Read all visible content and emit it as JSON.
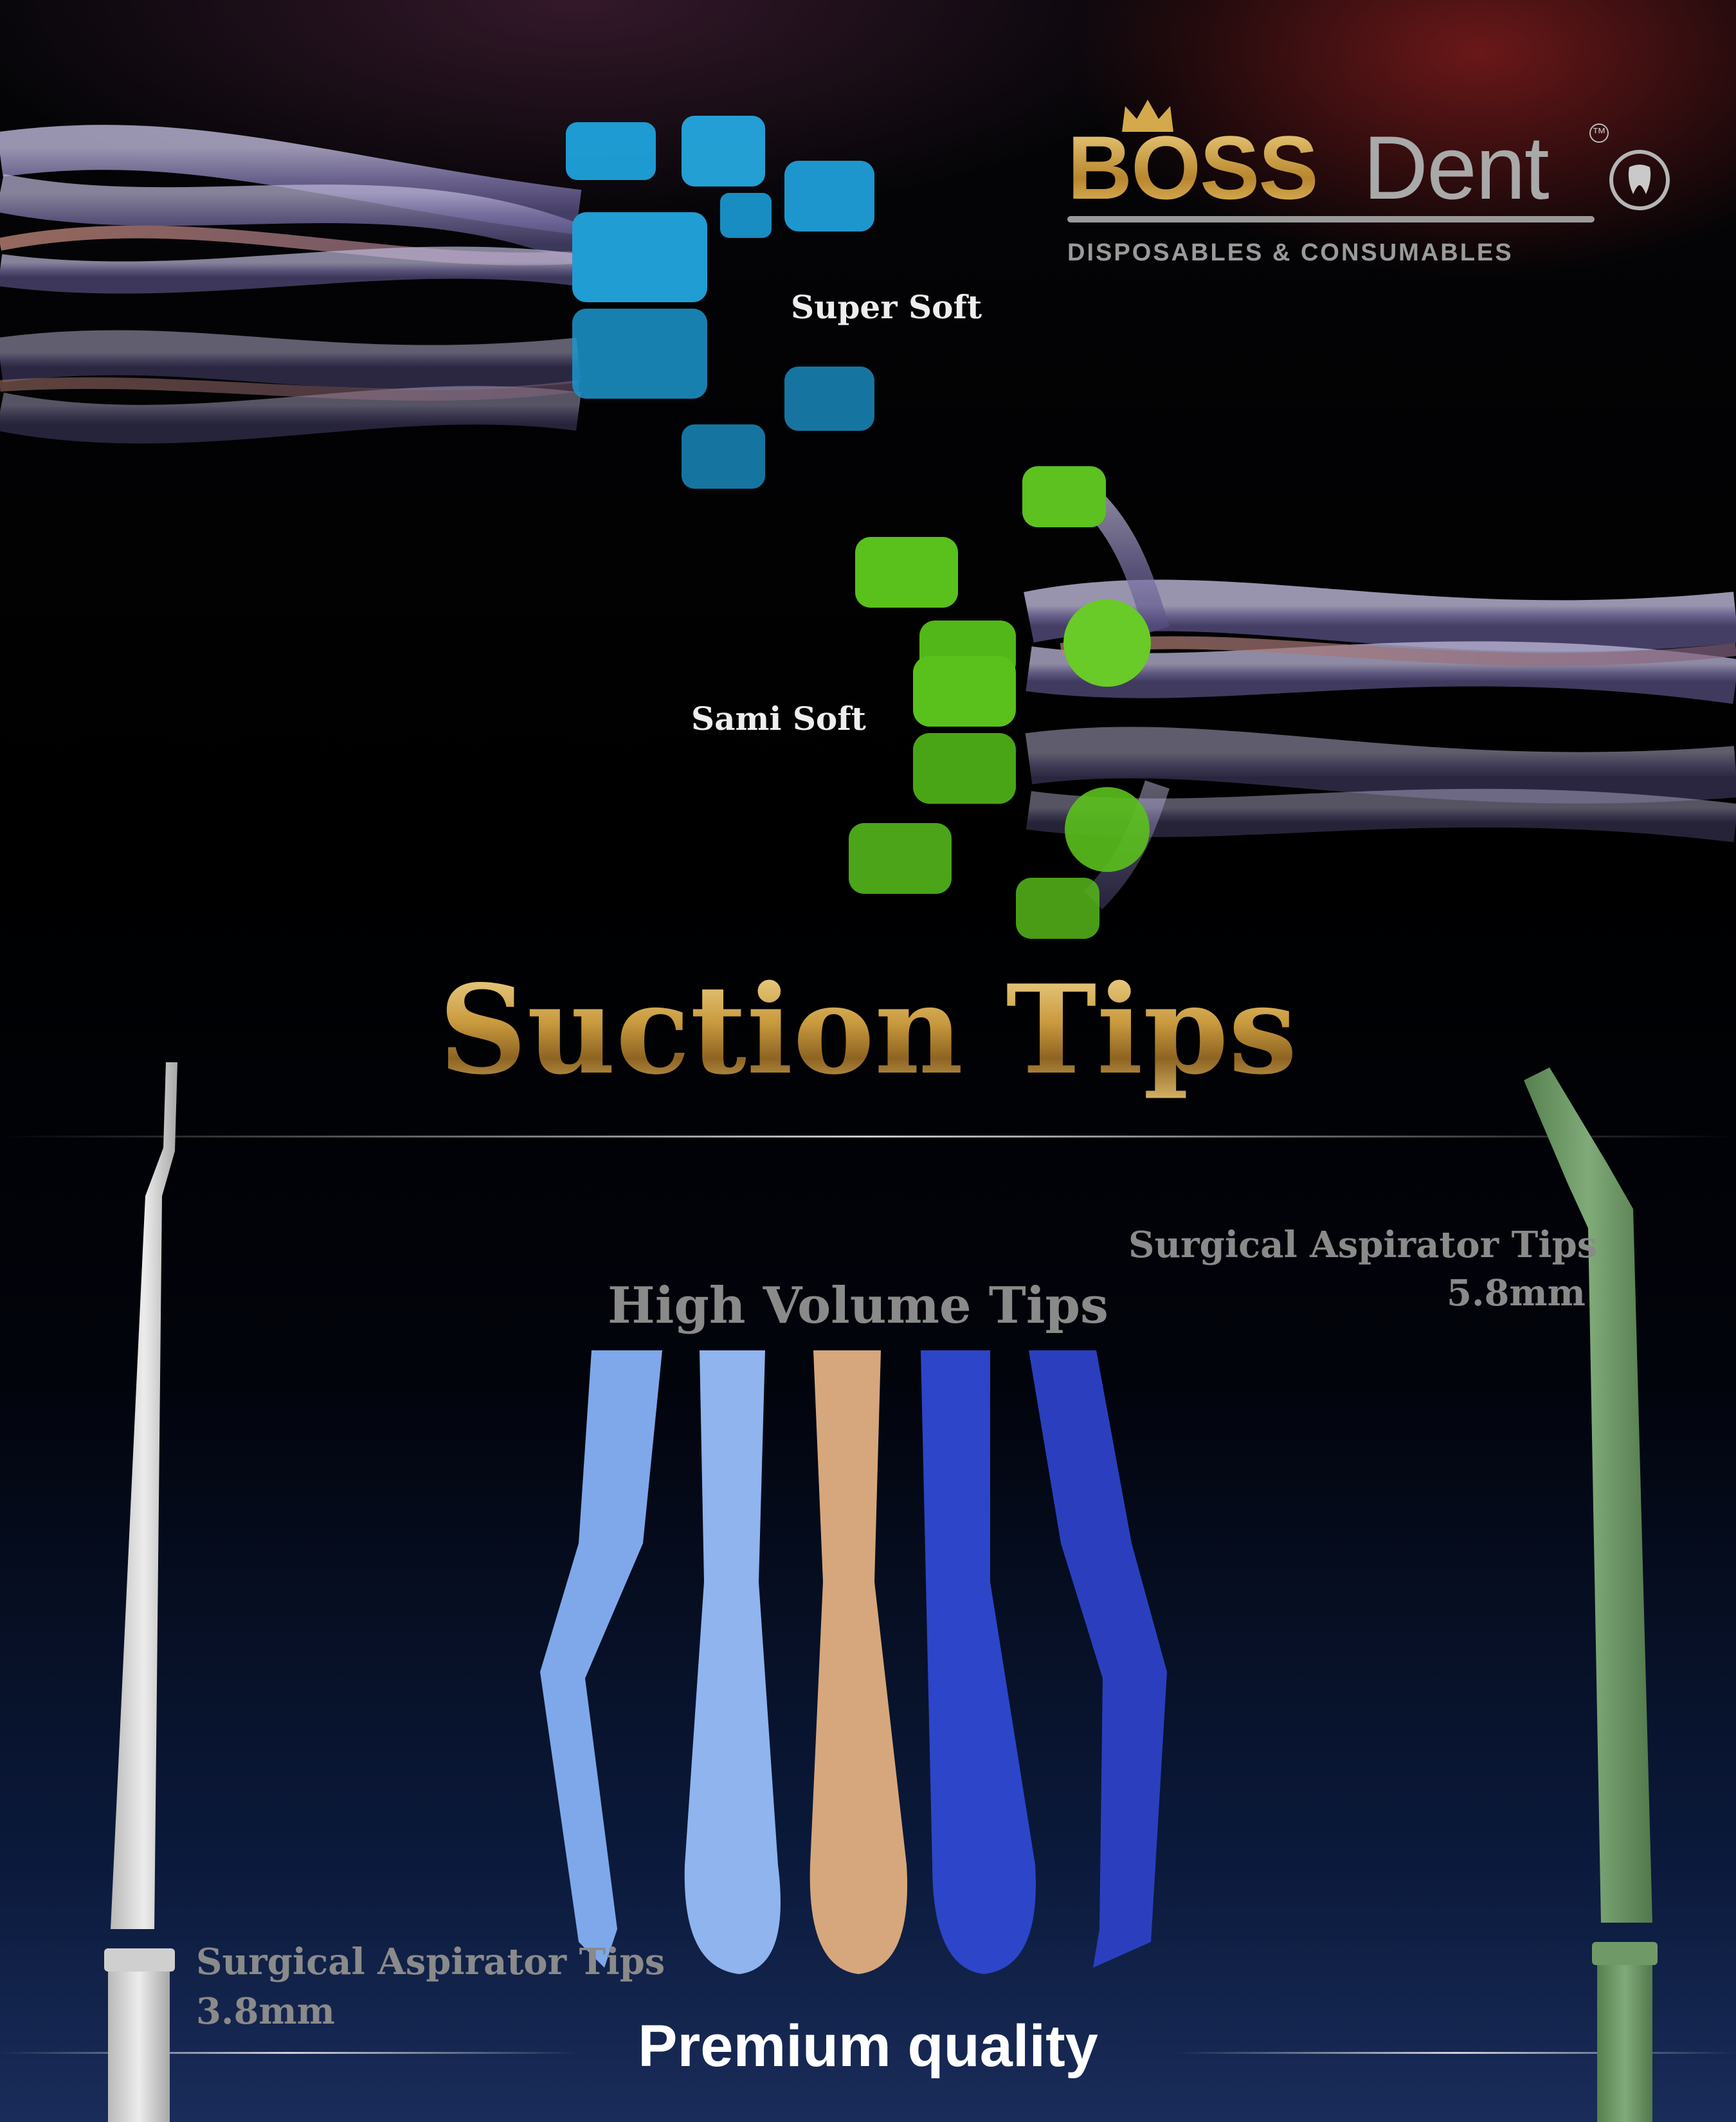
{
  "brand": {
    "name_part1": "BOSS",
    "name_part2": "Dent",
    "trademark": "TM",
    "tagline": "DISPOSABLES & CONSUMABLES",
    "tooth_icon": "tooth-icon",
    "crown_icon": "crown-icon",
    "colors": {
      "gold": "#c99a3e",
      "silver": "#a9a9a9"
    }
  },
  "products": {
    "super_soft": "Super Soft",
    "sami_soft": "Sami Soft",
    "high_volume": "High Volume Tips",
    "surgical_small": {
      "name": "Surgical Aspirator Tips",
      "size": "3.8mm"
    },
    "surgical_large": {
      "name": "Surgical Aspirator Tips",
      "size": "5.8mm"
    }
  },
  "title": "Suction Tips",
  "footer": "Premium quality",
  "colors": {
    "super_soft_tip": "#1fa4dd",
    "sami_soft_tip": "#5fcb1e",
    "hv_tips": [
      "#7fa8ea",
      "#8fb4ee",
      "#d6a77c",
      "#2d45c8",
      "#2b3fbe"
    ],
    "surgical_small": "#dcdcdc",
    "surgical_large": "#6f9a68"
  }
}
